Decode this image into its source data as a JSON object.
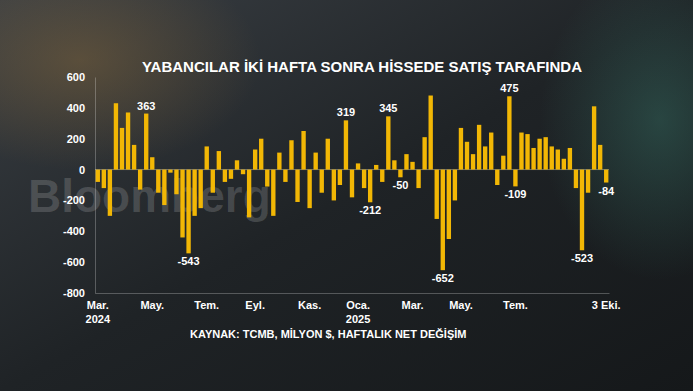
{
  "chart_data": {
    "type": "bar",
    "title": "YABANCILAR İKİ HAFTA SONRA HİSSEDE SATIŞ TARAFINDA",
    "source": "KAYNAK: TCMB, MİLYON $, HAFTALIK NET DEĞİŞİM",
    "watermark": "Bloomberg",
    "categories": [
      "Mar.\n2024",
      null,
      null,
      null,
      null,
      null,
      null,
      null,
      null,
      "May.",
      null,
      null,
      null,
      null,
      null,
      null,
      null,
      null,
      "Tem.",
      null,
      null,
      null,
      null,
      null,
      null,
      null,
      "Eyl.",
      null,
      null,
      null,
      null,
      null,
      null,
      null,
      null,
      "Kas.",
      null,
      null,
      null,
      null,
      null,
      null,
      null,
      "Oca.\n2025",
      null,
      null,
      null,
      null,
      null,
      null,
      null,
      null,
      "Mar.",
      null,
      null,
      null,
      null,
      null,
      null,
      null,
      "May.",
      null,
      null,
      null,
      null,
      null,
      null,
      null,
      null,
      "Tem.",
      null,
      null,
      null,
      null,
      null,
      null,
      null,
      null,
      null,
      null,
      null,
      null,
      null,
      null,
      "3 Eki."
    ],
    "values": [
      -80,
      -120,
      -300,
      430,
      270,
      370,
      160,
      -130,
      363,
      80,
      -150,
      -230,
      -20,
      -160,
      -440,
      -543,
      -300,
      -250,
      150,
      -150,
      120,
      -80,
      -60,
      60,
      -30,
      -310,
      130,
      200,
      -110,
      -300,
      110,
      -80,
      190,
      -210,
      250,
      -250,
      110,
      -150,
      200,
      -200,
      -100,
      319,
      -180,
      40,
      -120,
      -212,
      30,
      -80,
      345,
      60,
      -50,
      100,
      50,
      -120,
      210,
      480,
      -320,
      -652,
      -450,
      -200,
      270,
      180,
      100,
      290,
      150,
      240,
      -100,
      90,
      475,
      -109,
      240,
      230,
      140,
      200,
      210,
      150,
      130,
      70,
      140,
      -120,
      -523,
      -150,
      410,
      160,
      -84
    ],
    "value_labels": [
      null,
      null,
      null,
      null,
      null,
      null,
      null,
      null,
      "363",
      null,
      null,
      null,
      null,
      null,
      null,
      "-543",
      null,
      null,
      null,
      null,
      null,
      null,
      null,
      null,
      null,
      null,
      null,
      null,
      null,
      null,
      null,
      null,
      null,
      null,
      null,
      null,
      null,
      null,
      null,
      null,
      null,
      "319",
      null,
      null,
      null,
      "-212",
      null,
      null,
      "345",
      null,
      "-50",
      null,
      null,
      null,
      null,
      null,
      null,
      "-652",
      null,
      null,
      null,
      null,
      null,
      null,
      null,
      null,
      null,
      null,
      "475",
      "-109",
      null,
      null,
      null,
      null,
      null,
      null,
      null,
      null,
      null,
      null,
      "-523",
      null,
      null,
      null,
      "-84"
    ],
    "data_labels": true,
    "color": "#f2b705",
    "ylim": [
      -800,
      600
    ],
    "yticks": [
      -800,
      -600,
      -400,
      -200,
      0,
      200,
      400,
      600
    ],
    "grid": false
  }
}
